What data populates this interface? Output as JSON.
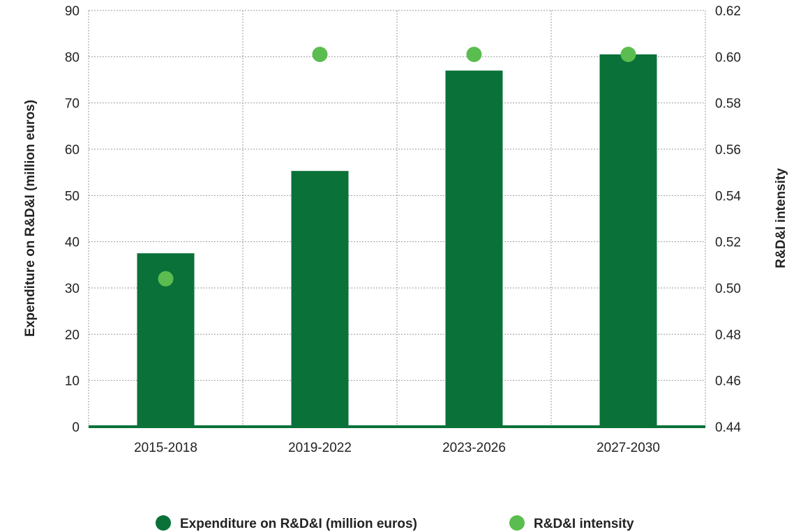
{
  "chart_data": {
    "type": "bar",
    "categories": [
      "2015-2018",
      "2019-2022",
      "2023-2026",
      "2027-2030"
    ],
    "series": [
      {
        "name": "Expenditure on R&D&I (million euros)",
        "type": "bar",
        "axis": "left",
        "color": "#0a7139",
        "values": [
          37.5,
          55.3,
          77.0,
          80.5
        ]
      },
      {
        "name": "R&D&I intensity",
        "type": "scatter",
        "axis": "right",
        "color": "#5bbd4f",
        "values": [
          0.504,
          0.601,
          0.601,
          0.601
        ]
      }
    ],
    "ylabel": "Expenditure on R&D&I (million euros)",
    "y2label": "R&D&I intensity",
    "xlabel": "",
    "ylim": [
      0,
      90
    ],
    "y2lim": [
      0.44,
      0.62
    ],
    "yticks": [
      "0",
      "10",
      "20",
      "30",
      "40",
      "50",
      "60",
      "70",
      "80",
      "90"
    ],
    "y2ticks": [
      "0.44",
      "0.46",
      "0.48",
      "0.50",
      "0.52",
      "0.54",
      "0.56",
      "0.58",
      "0.60",
      "0.62"
    ],
    "grid": true,
    "legend_position": "bottom"
  }
}
